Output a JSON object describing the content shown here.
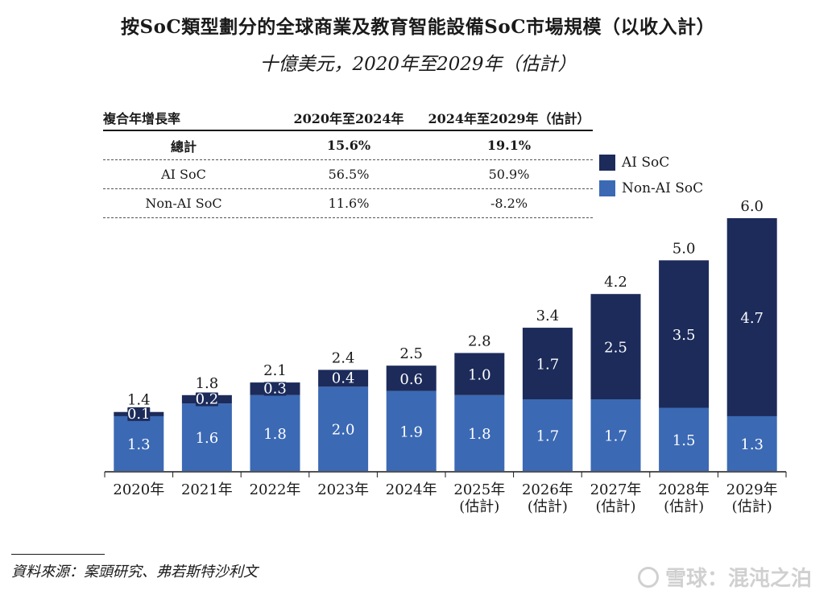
{
  "title": "按SoC類型劃分的全球商業及教育智能設備SoC市場規模（以收入計）",
  "subtitle": "十億美元，2020年至2029年（估計）",
  "cagr_table": {
    "header": [
      "複合年增長率",
      "2020年至2024年",
      "2024年至2029年（估計）"
    ],
    "rows": [
      {
        "label": "總計",
        "v1": "15.6%",
        "v2": "19.1%",
        "bold": true
      },
      {
        "label": "AI SoC",
        "v1": "56.5%",
        "v2": "50.9%",
        "bold": false
      },
      {
        "label": "Non-AI SoC",
        "v1": "11.6%",
        "v2": "-8.2%",
        "bold": false
      }
    ]
  },
  "legend": {
    "ai": "AI SoC",
    "nonai": "Non-AI SoC"
  },
  "colors": {
    "ai": "#1c2b5a",
    "nonai": "#3b69b4"
  },
  "chart_data": {
    "type": "bar",
    "stacked": true,
    "categories": [
      "2020年",
      "2021年",
      "2022年",
      "2023年",
      "2024年",
      "2025年\n(估計)",
      "2026年\n(估計)",
      "2027年\n(估計)",
      "2028年\n(估計)",
      "2029年\n(估計)"
    ],
    "series": [
      {
        "name": "Non-AI SoC",
        "values": [
          1.3,
          1.6,
          1.8,
          2.0,
          1.9,
          1.8,
          1.7,
          1.7,
          1.5,
          1.3
        ]
      },
      {
        "name": "AI SoC",
        "values": [
          0.1,
          0.2,
          0.3,
          0.4,
          0.6,
          1.0,
          1.7,
          2.5,
          3.5,
          4.7
        ]
      }
    ],
    "totals": [
      1.4,
      1.8,
      2.1,
      2.4,
      2.5,
      2.8,
      3.4,
      4.2,
      5.0,
      6.0
    ],
    "ylim": [
      0,
      6.0
    ],
    "legend_position": "top-right"
  },
  "source": "資料來源：案頭研究、弗若斯特沙利文",
  "watermark": "雪球：混沌之泊"
}
